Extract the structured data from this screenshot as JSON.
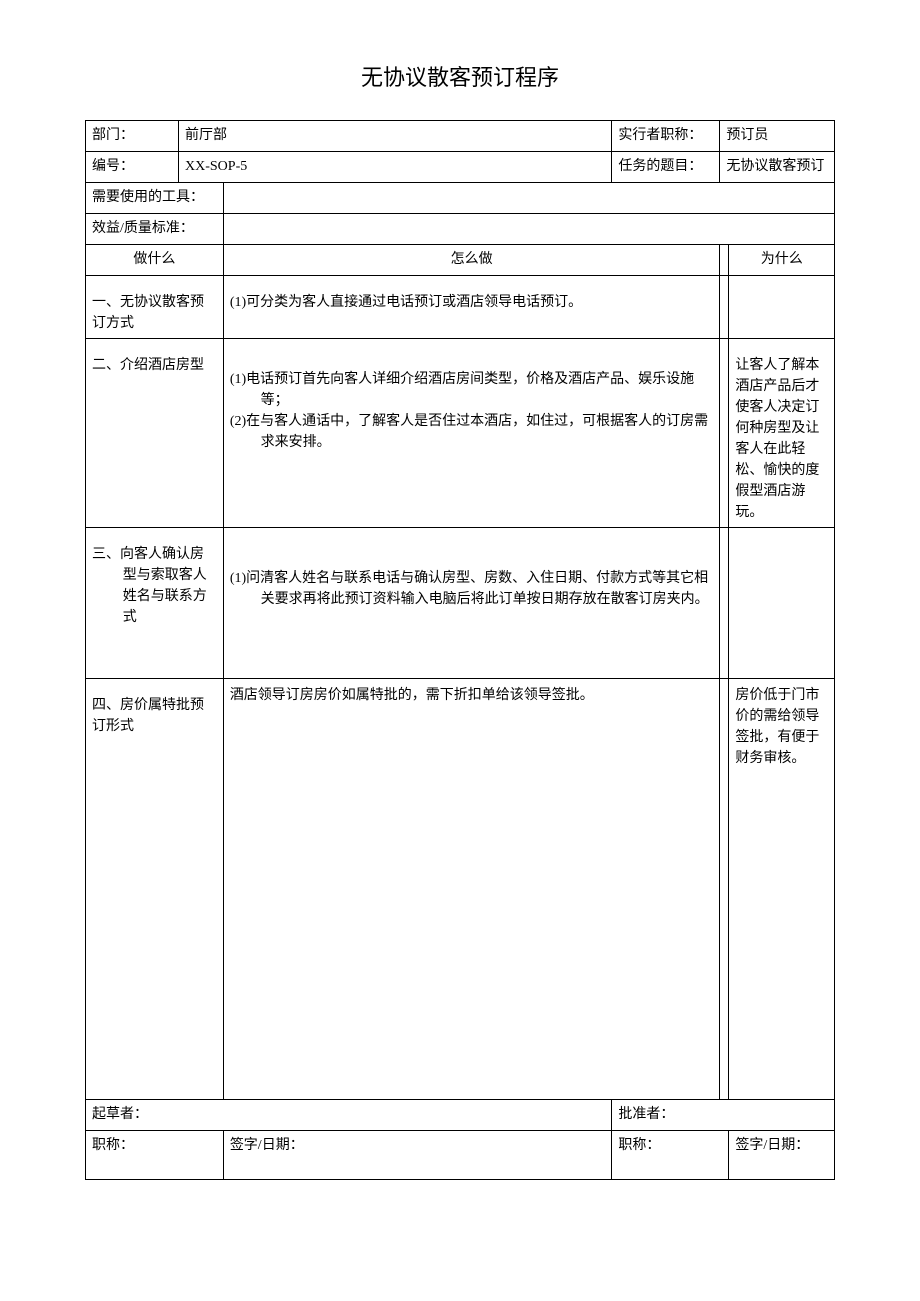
{
  "title": "无协议散客预订程序",
  "header": {
    "dept_label": "部门：",
    "dept_value": "前厅部",
    "performer_label": "实行者职称：",
    "performer_value": "预订员",
    "code_label": "编号：",
    "code_value": "XX-SOP-5",
    "task_label": "任务的题目：",
    "task_value": "无协议散客预订",
    "tools_label": "需要使用的工具：",
    "tools_value": "",
    "quality_label": "效益/质量标准：",
    "quality_value": ""
  },
  "columns": {
    "what": "做什么",
    "how": "怎么做",
    "why": "为什么"
  },
  "rows": [
    {
      "what": "一、无协议散客预订方式",
      "how": "(1)可分类为客人直接通过电话预订或酒店领导电话预订。",
      "why": ""
    },
    {
      "what": "二、介绍酒店房型",
      "how": "(1)电话预订首先向客人详细介绍酒店房间类型，价格及酒店产品、娱乐设施等；\n(2)在与客人通话中，了解客人是否住过本酒店，如住过，可根据客人的订房需求来安排。",
      "why": "让客人了解本酒店产品后才使客人决定订何种房型及让客人在此轻松、愉快的度假型酒店游玩。"
    },
    {
      "what": "三、向客人确认房型与索取客人姓名与联系方式",
      "how": "(1)问清客人姓名与联系电话与确认房型、房数、入住日期、付款方式等其它相关要求再将此预订资料输入电脑后将此订单按日期存放在散客订房夹内。",
      "why": ""
    },
    {
      "what": "四、房价属特批预订形式",
      "how": "酒店领导订房房价如属特批的，需下折扣单给该领导签批。",
      "why": "房价低于门市价的需给领导签批，有便于财务审核。"
    }
  ],
  "footer": {
    "drafter_label": "起草者：",
    "approver_label": "批准者：",
    "title_label": "职称：",
    "sign_label": "签字/日期："
  }
}
